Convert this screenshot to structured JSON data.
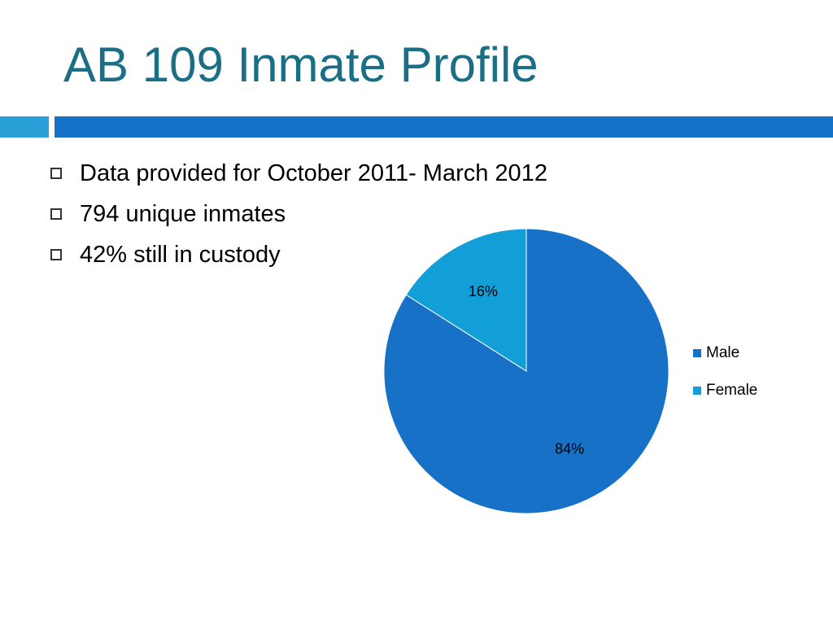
{
  "slide": {
    "title": "AB 109 Inmate Profile",
    "bullets": [
      "Data provided for October 2011- March 2012",
      "794 unique inmates",
      "42% still in custody"
    ]
  },
  "colors": {
    "title": "#1a6e85",
    "band_left": "#29a1d8",
    "band_right": "#1673c7"
  },
  "chart_data": {
    "type": "pie",
    "title": "",
    "categories": [
      "Male",
      "Female"
    ],
    "values": [
      84,
      16
    ],
    "data_labels": [
      "84%",
      "16%"
    ],
    "colors": [
      "#1771c6",
      "#129ed6"
    ],
    "legend_position": "right",
    "start_angle_deg": 0,
    "direction": "clockwise"
  }
}
